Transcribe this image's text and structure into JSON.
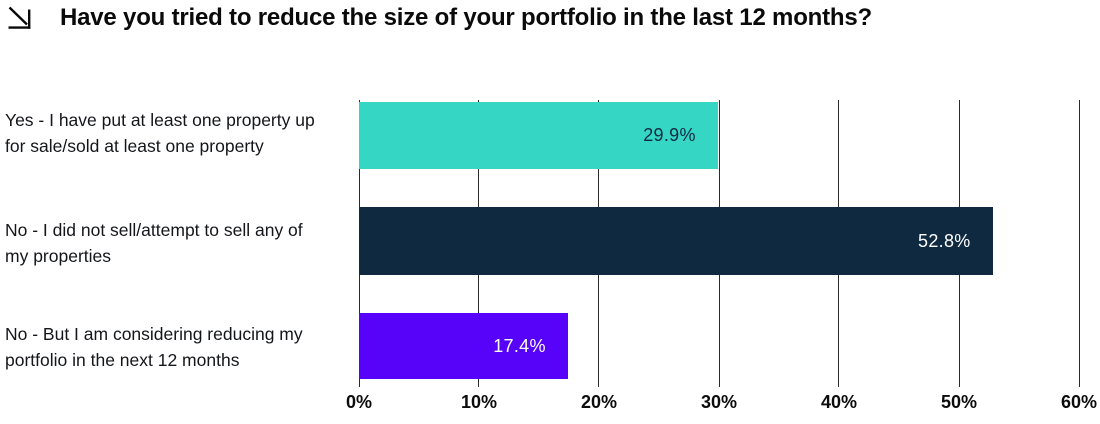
{
  "header": {
    "title": "Have you tried to reduce the size of your portfolio in the last 12 months?",
    "icon": "arrow-down-right"
  },
  "chart_data": {
    "type": "bar",
    "orientation": "horizontal",
    "title": "Have you tried to reduce the size of your portfolio in the last 12 months?",
    "categories": [
      "Yes - I have put at least one property up for sale/sold at least one property",
      "No - I did not sell/attempt to sell any of my properties",
      "No - But I am considering reducing my portfolio in the next 12 months"
    ],
    "values": [
      29.9,
      52.8,
      17.4
    ],
    "value_labels": [
      "29.9%",
      "52.8%",
      "17.4%"
    ],
    "bar_colors": [
      "#35D7C4",
      "#0E2940",
      "#5703F9"
    ],
    "value_label_colors": [
      "#0E2940",
      "#FFFFFF",
      "#FFFFFF"
    ],
    "xlabel": "",
    "ylabel": "",
    "xlim": [
      0,
      60
    ],
    "x_ticks": [
      {
        "value": 0,
        "label": "0%"
      },
      {
        "value": 10,
        "label": "10%"
      },
      {
        "value": 20,
        "label": "20%"
      },
      {
        "value": 30,
        "label": "30%"
      },
      {
        "value": 40,
        "label": "40%"
      },
      {
        "value": 50,
        "label": "50%"
      },
      {
        "value": 60,
        "label": "60%"
      }
    ],
    "grid": true,
    "legend": false,
    "background": "#FFFFFF"
  },
  "colors": {
    "background": "#FFFFFF",
    "grid": "#2B2B2B",
    "title_text": "#0A0A0A",
    "category_text": "#14161A",
    "tick_text": "#0C0C0C"
  }
}
